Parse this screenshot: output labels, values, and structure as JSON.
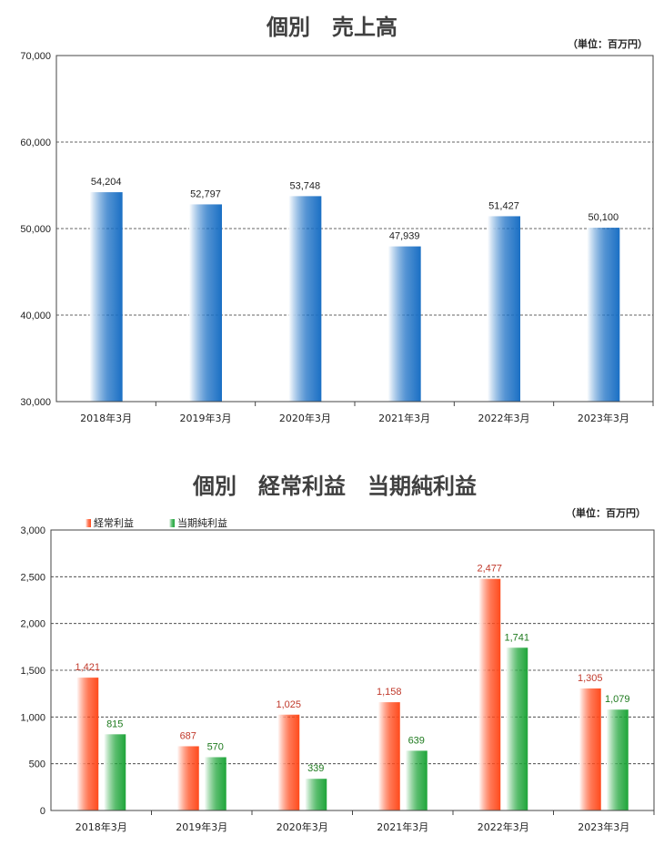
{
  "chart_data": [
    {
      "type": "bar",
      "title": "個別　売上高",
      "unit": "（単位：百万円）",
      "categories": [
        "2018年3月",
        "2019年3月",
        "2020年3月",
        "2021年3月",
        "2022年3月",
        "2023年3月"
      ],
      "series": [
        {
          "values": [
            54204,
            52797,
            53748,
            47939,
            51427,
            50100
          ],
          "labels": [
            "54,204",
            "52,797",
            "53,748",
            "47,939",
            "51,427",
            "50,100"
          ],
          "color": "#1a6fc4",
          "color_light": "#ffffff",
          "label_color": "#222222"
        }
      ],
      "ylim": [
        30000,
        70000
      ],
      "yticks": [
        30000,
        40000,
        50000,
        60000,
        70000
      ],
      "ytick_labels": [
        "30,000",
        "40,000",
        "50,000",
        "60,000",
        "70,000"
      ],
      "grid": true,
      "legend": "none"
    },
    {
      "type": "bar",
      "title": "個別　経常利益　当期純利益",
      "unit": "（単位：百万円）",
      "categories": [
        "2018年3月",
        "2019年3月",
        "2020年3月",
        "2021年3月",
        "2022年3月",
        "2023年3月"
      ],
      "series": [
        {
          "name": "経常利益",
          "values": [
            1421,
            687,
            1025,
            1158,
            2477,
            1305
          ],
          "labels": [
            "1,421",
            "687",
            "1,025",
            "1,158",
            "2,477",
            "1,305"
          ],
          "color": "#ff4a1c",
          "color_light": "#ffffff",
          "label_color": "#c0392b"
        },
        {
          "name": "当期純利益",
          "values": [
            815,
            570,
            339,
            639,
            1741,
            1079
          ],
          "labels": [
            "815",
            "570",
            "339",
            "639",
            "1,741",
            "1,079"
          ],
          "color": "#1fa53a",
          "color_light": "#ffffff",
          "label_color": "#1e7a1e"
        }
      ],
      "ylim": [
        0,
        3000
      ],
      "yticks": [
        0,
        500,
        1000,
        1500,
        2000,
        2500,
        3000
      ],
      "ytick_labels": [
        "0",
        "500",
        "1,000",
        "1,500",
        "2,000",
        "2,500",
        "3,000"
      ],
      "grid": true,
      "legend": "top-left"
    }
  ]
}
